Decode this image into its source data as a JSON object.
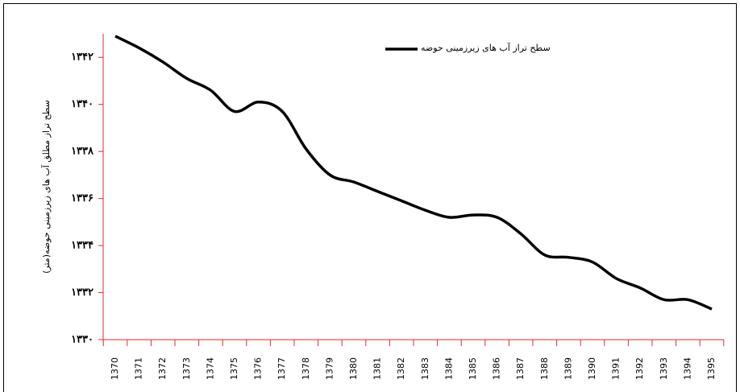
{
  "chart_data": {
    "type": "line",
    "y_label": "سطح تراز مطلق آب های زیرزمینی حوضه(متر)",
    "categories": [
      "1370",
      "1371",
      "1372",
      "1373",
      "1374",
      "1375",
      "1376",
      "1377",
      "1378",
      "1379",
      "1380",
      "1381",
      "1382",
      "1383",
      "1384",
      "1385",
      "1386",
      "1387",
      "1388",
      "1389",
      "1390",
      "1391",
      "1392",
      "1393",
      "1394",
      "1395"
    ],
    "series": [
      {
        "name": "سطح تراز آب های زیرزمینی حوضه",
        "color": "#000000",
        "values": [
          1342.9,
          1342.4,
          1341.8,
          1341.1,
          1340.6,
          1339.7,
          1340.1,
          1339.7,
          1338.1,
          1337.0,
          1336.7,
          1336.3,
          1335.9,
          1335.5,
          1335.2,
          1335.3,
          1335.2,
          1334.5,
          1333.6,
          1333.5,
          1333.3,
          1332.6,
          1332.2,
          1331.7,
          1331.7,
          1331.3
        ]
      }
    ],
    "ylim": [
      1330,
      1343
    ],
    "yticks": [
      {
        "value": 1330,
        "label": "۱۳۳۰"
      },
      {
        "value": 1332,
        "label": "۱۳۳۲"
      },
      {
        "value": 1334,
        "label": "۱۳۳۴"
      },
      {
        "value": 1336,
        "label": "۱۳۳۶"
      },
      {
        "value": 1338,
        "label": "۱۳۳۸"
      },
      {
        "value": 1340,
        "label": "۱۳۴۰"
      },
      {
        "value": 1342,
        "label": "۱۳۴۲"
      }
    ],
    "axis_color": "#e8262a",
    "legend": "top"
  }
}
